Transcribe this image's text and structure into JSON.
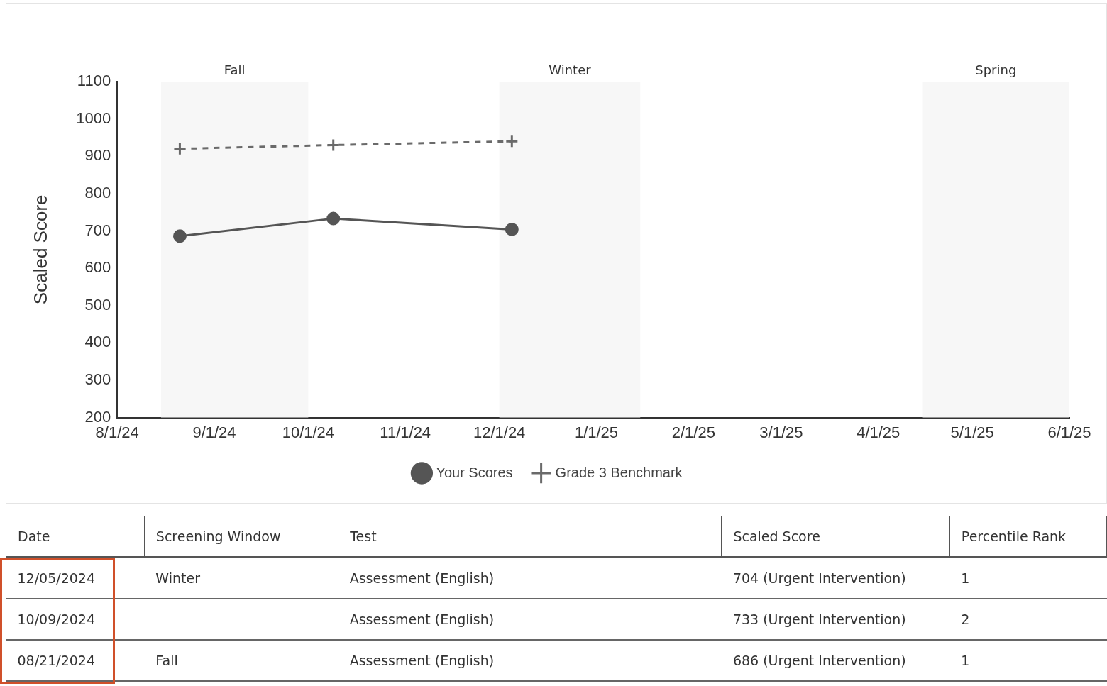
{
  "chart_data": {
    "type": "line",
    "ylabel": "Scaled Score",
    "series": [
      {
        "name": "Your Scores",
        "color": "#555555",
        "x": [
          "2024-08-21",
          "2024-10-09",
          "2024-12-05"
        ],
        "values": [
          686,
          733,
          704
        ],
        "marker": "circle",
        "line_style": "solid"
      },
      {
        "name": "Grade 3 Benchmark",
        "color": "#6a6a6a",
        "x": [
          "2024-08-21",
          "2024-10-09",
          "2024-12-05"
        ],
        "values": [
          920,
          930,
          940
        ],
        "marker": "cross",
        "line_style": "dashed"
      }
    ],
    "xlim": [
      "2024-08-01",
      "2025-06-01"
    ],
    "xticks": [
      {
        "value": "2024-08-01",
        "label": "8/1/24"
      },
      {
        "value": "2024-09-01",
        "label": "9/1/24"
      },
      {
        "value": "2024-10-01",
        "label": "10/1/24"
      },
      {
        "value": "2024-11-01",
        "label": "11/1/24"
      },
      {
        "value": "2024-12-01",
        "label": "12/1/24"
      },
      {
        "value": "2025-01-01",
        "label": "1/1/25"
      },
      {
        "value": "2025-02-01",
        "label": "2/1/25"
      },
      {
        "value": "2025-03-01",
        "label": "3/1/25"
      },
      {
        "value": "2025-04-01",
        "label": "4/1/25"
      },
      {
        "value": "2025-05-01",
        "label": "5/1/25"
      },
      {
        "value": "2025-06-01",
        "label": "6/1/25"
      }
    ],
    "ylim": [
      200,
      1100
    ],
    "yticks": [
      200,
      300,
      400,
      500,
      600,
      700,
      800,
      900,
      1000,
      1100
    ],
    "bands": [
      {
        "axis": "x",
        "from": "2024-08-15",
        "to": "2024-10-01",
        "label": "Fall",
        "color": "#f7f7f7"
      },
      {
        "axis": "x",
        "from": "2024-12-01",
        "to": "2025-01-15",
        "label": "Winter",
        "color": "#f7f7f7"
      },
      {
        "axis": "x",
        "from": "2025-04-15",
        "to": "2025-06-01",
        "label": "Spring",
        "color": "#f7f7f7"
      }
    ],
    "grid": false,
    "legend": "bottom",
    "annotations": [
      "Date",
      "Screening Window",
      "Test",
      "Scaled Score",
      "Percentile Rank",
      "12/05/2024",
      "Winter",
      "Assessment (English)",
      "704 (Urgent Intervention)",
      "1",
      "10/09/2024",
      null,
      "Assessment (English)",
      "733 (Urgent Intervention)",
      "2",
      "08/21/2024",
      "Fall",
      "Assessment (English)",
      "686 (Urgent Intervention)",
      "1"
    ]
  }
}
